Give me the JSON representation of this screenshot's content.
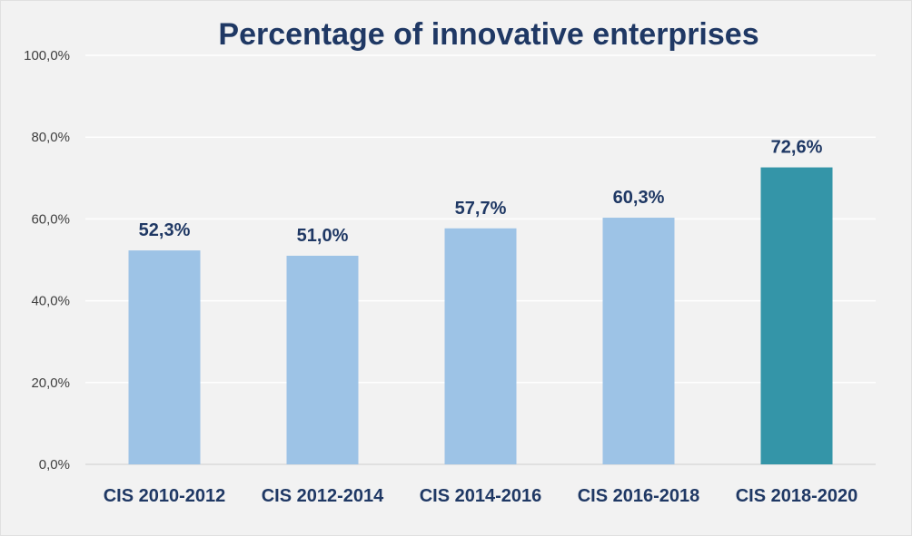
{
  "chart_data": {
    "type": "bar",
    "title": "Percentage of innovative enterprises",
    "xlabel": "",
    "ylabel": "",
    "categories": [
      "CIS 2010-2012",
      "CIS 2012-2014",
      "CIS 2014-2016",
      "CIS 2016-2018",
      "CIS 2018-2020"
    ],
    "values": [
      52.3,
      51.0,
      57.7,
      60.3,
      72.6
    ],
    "data_labels": [
      "52,3%",
      "51,0%",
      "57,7%",
      "60,3%",
      "72,6%"
    ],
    "ylim": [
      0,
      100
    ],
    "y_ticks": [
      0,
      20,
      40,
      60,
      80,
      100
    ],
    "y_tick_labels": [
      "0,0%",
      "20,0%",
      "40,0%",
      "60,0%",
      "80,0%",
      "100,0%"
    ],
    "grid": true,
    "legend": "none",
    "colors": {
      "bar_default": "#9dc3e6",
      "bar_highlight": "#3495a8",
      "highlight_index": 4,
      "title": "#1f3864",
      "background": "#f2f2f2"
    }
  }
}
